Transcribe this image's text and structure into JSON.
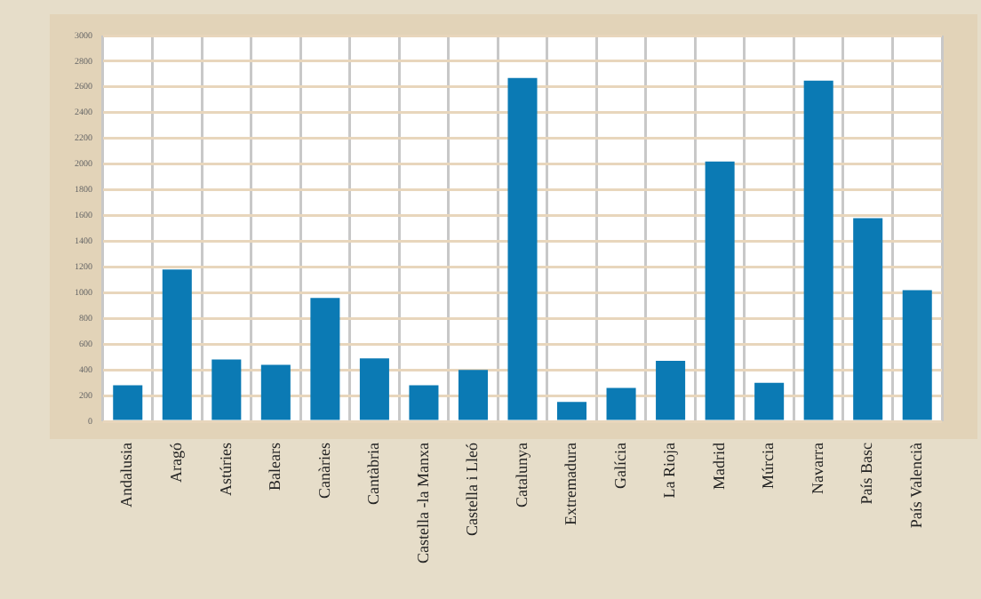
{
  "chart_data": {
    "type": "bar",
    "categories": [
      "Andalusia",
      "Aragó",
      "Astúries",
      "Balears",
      "Canàries",
      "Cantàbria",
      "Castella -la Manxa",
      "Castella i Lleó",
      "Catalunya",
      "Extremadura",
      "Galícia",
      "La Rioja",
      "Madrid",
      "Múrcia",
      "Navarra",
      "País Basc",
      "País Valencià"
    ],
    "values": [
      280,
      1180,
      480,
      440,
      960,
      490,
      280,
      400,
      2670,
      150,
      260,
      470,
      2020,
      300,
      2650,
      1580,
      1020
    ],
    "color": "#0b7ab4",
    "ylim": [
      0,
      3000
    ],
    "yticks": [
      0,
      200,
      400,
      600,
      800,
      1000,
      1200,
      1400,
      1600,
      1800,
      2000,
      2200,
      2400,
      2600,
      2800,
      3000
    ],
    "grid": true
  }
}
